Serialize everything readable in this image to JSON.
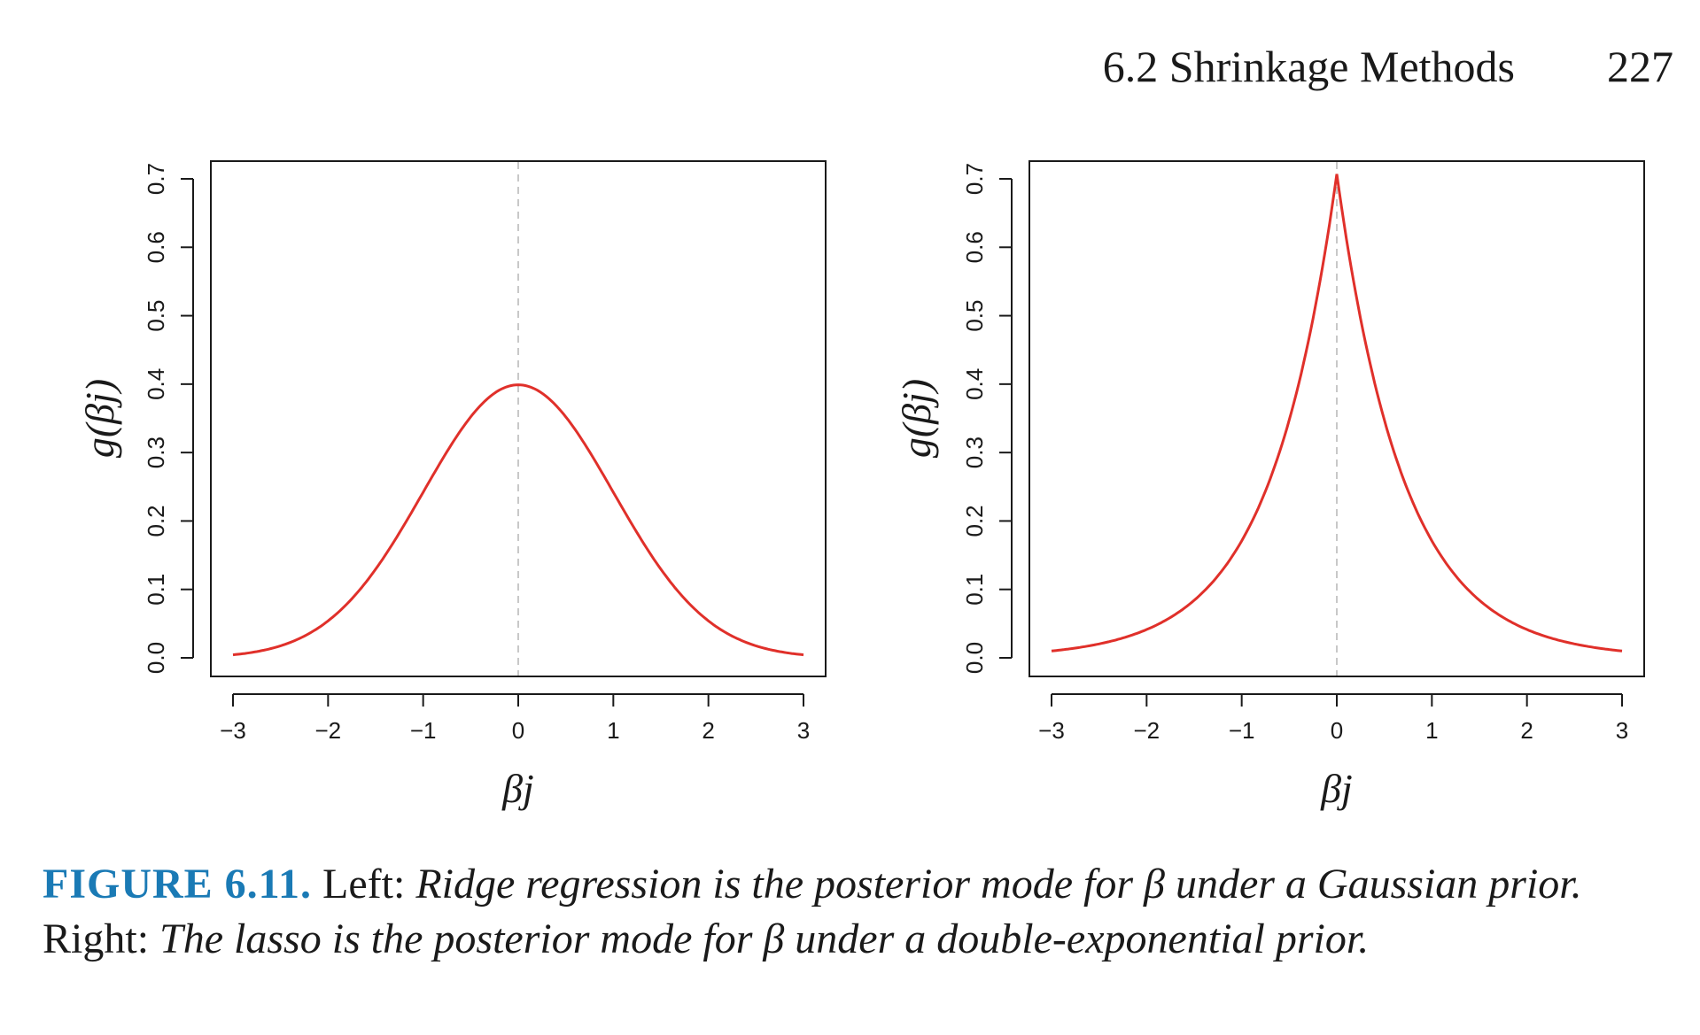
{
  "header": {
    "section": "6.2 Shrinkage Methods",
    "page": "227"
  },
  "chart_data": [
    {
      "type": "line",
      "panel": "Left",
      "density": "gaussian",
      "xlabel": "βj",
      "ylabel": "g(βj)",
      "xlim": [
        -3,
        3
      ],
      "ylim": [
        0,
        0.7
      ],
      "xticks": [
        "−3",
        "−2",
        "−1",
        "0",
        "1",
        "2",
        "3"
      ],
      "yticks": [
        "0.0",
        "0.1",
        "0.2",
        "0.3",
        "0.4",
        "0.5",
        "0.6",
        "0.7"
      ],
      "series": [
        {
          "x": [
            -3,
            -2.5,
            -2,
            -1.5,
            -1,
            -0.5,
            0,
            0.5,
            1,
            1.5,
            2,
            2.5,
            3
          ],
          "y": [
            0.004,
            0.018,
            0.054,
            0.13,
            0.242,
            0.352,
            0.399,
            0.352,
            0.242,
            0.13,
            0.054,
            0.018,
            0.004
          ],
          "color": "#e0302a"
        }
      ],
      "reference_line": {
        "x": 0,
        "style": "dashed",
        "color": "#c8c8c8"
      }
    },
    {
      "type": "line",
      "panel": "Right",
      "density": "double-exponential",
      "xlabel": "βj",
      "ylabel": "g(βj)",
      "xlim": [
        -3,
        3
      ],
      "ylim": [
        0,
        0.7
      ],
      "xticks": [
        "−3",
        "−2",
        "−1",
        "0",
        "1",
        "2",
        "3"
      ],
      "yticks": [
        "0.0",
        "0.1",
        "0.2",
        "0.3",
        "0.4",
        "0.5",
        "0.6",
        "0.7"
      ],
      "series": [
        {
          "x": [
            -3,
            -2.5,
            -2,
            -1.5,
            -1,
            -0.5,
            0,
            0.5,
            1,
            1.5,
            2,
            2.5,
            3
          ],
          "y": [
            0.01,
            0.02,
            0.041,
            0.084,
            0.172,
            0.349,
            0.707,
            0.349,
            0.172,
            0.084,
            0.041,
            0.02,
            0.01
          ],
          "color": "#e0302a"
        }
      ],
      "reference_line": {
        "x": 0,
        "style": "dashed",
        "color": "#c8c8c8"
      }
    }
  ],
  "caption": {
    "label": "FIGURE 6.11.",
    "left_word": "Left:",
    "left_text": "Ridge regression is the posterior mode for β under a Gaussian prior.",
    "right_word": "Right:",
    "right_text": "The lasso is the posterior mode for β under a double-exponential prior."
  }
}
